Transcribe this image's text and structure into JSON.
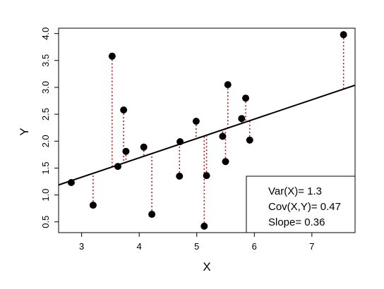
{
  "chart_data": {
    "type": "scatter",
    "xlabel": "X",
    "ylabel": "Y",
    "xlim": [
      2.6,
      7.75
    ],
    "ylim": [
      0.3,
      4.1
    ],
    "x_ticks": [
      "3",
      "4",
      "5",
      "6",
      "7"
    ],
    "y_ticks": [
      "0.5",
      "1.0",
      "1.5",
      "2.0",
      "2.5",
      "3.0",
      "3.5",
      "4.0"
    ],
    "grid": false,
    "points": [
      {
        "x": 2.82,
        "y": 1.23
      },
      {
        "x": 3.2,
        "y": 0.81
      },
      {
        "x": 3.53,
        "y": 3.58
      },
      {
        "x": 3.63,
        "y": 1.53
      },
      {
        "x": 3.73,
        "y": 2.58
      },
      {
        "x": 3.77,
        "y": 1.81
      },
      {
        "x": 4.08,
        "y": 1.89
      },
      {
        "x": 4.22,
        "y": 0.64
      },
      {
        "x": 4.7,
        "y": 1.35
      },
      {
        "x": 4.71,
        "y": 1.99
      },
      {
        "x": 4.99,
        "y": 2.37
      },
      {
        "x": 5.13,
        "y": 0.42
      },
      {
        "x": 5.17,
        "y": 1.36
      },
      {
        "x": 5.45,
        "y": 2.09
      },
      {
        "x": 5.5,
        "y": 1.62
      },
      {
        "x": 5.54,
        "y": 3.05
      },
      {
        "x": 5.78,
        "y": 2.42
      },
      {
        "x": 5.85,
        "y": 2.8
      },
      {
        "x": 5.92,
        "y": 2.02
      },
      {
        "x": 7.55,
        "y": 3.98
      }
    ],
    "regression": {
      "intercept": 0.25,
      "slope": 0.36
    },
    "residual_color": "#e00000",
    "point_color": "#000000",
    "line_color": "#000000",
    "legend": {
      "position": "bottom-right",
      "lines": [
        "Var(X)= 1.3",
        "Cov(X,Y)= 0.47",
        "Slope= 0.36"
      ]
    }
  }
}
